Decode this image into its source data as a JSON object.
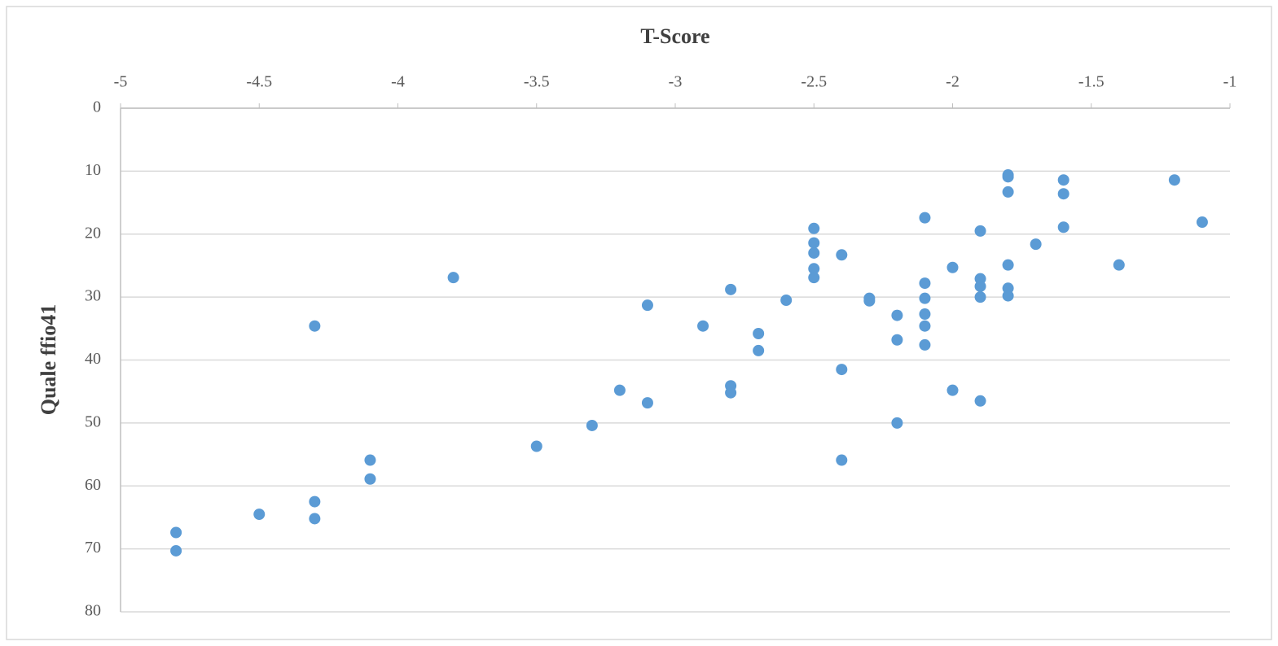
{
  "chart_data": {
    "type": "scatter",
    "x_label": "T-Score",
    "y_label": "Quale ffio41",
    "xlim": [
      -5,
      -1
    ],
    "xticks": [
      -5,
      -4.5,
      -4,
      -3.5,
      -3,
      -2.5,
      -2,
      -1.5,
      -1
    ],
    "ylim": [
      0,
      80
    ],
    "yticks": [
      0,
      10,
      20,
      30,
      40,
      50,
      60,
      70,
      80
    ],
    "y_reversed": true,
    "x_axis_position": "top",
    "grid": true,
    "color": "#5b9bd5",
    "x": [
      -4.8,
      -4.8,
      -4.5,
      -4.3,
      -4.3,
      -4.3,
      -4.1,
      -4.1,
      -3.8,
      -3.5,
      -3.3,
      -3.2,
      -3.1,
      -3.1,
      -2.9,
      -2.8,
      -2.8,
      -2.8,
      -2.7,
      -2.7,
      -2.6,
      -2.5,
      -2.5,
      -2.5,
      -2.5,
      -2.5,
      -2.4,
      -2.4,
      -2.4,
      -2.3,
      -2.3,
      -2.2,
      -2.2,
      -2.2,
      -2.1,
      -2.1,
      -2.1,
      -2.1,
      -2.1,
      -2.1,
      -2.0,
      -2.0,
      -1.9,
      -1.9,
      -1.9,
      -1.9,
      -1.9,
      -1.8,
      -1.8,
      -1.8,
      -1.8,
      -1.8,
      -1.8,
      -1.7,
      -1.6,
      -1.6,
      -1.6,
      -1.4,
      -1.2,
      -1.1
    ],
    "values": [
      67.4,
      70.3,
      64.5,
      34.6,
      62.5,
      65.2,
      55.9,
      58.9,
      26.9,
      53.7,
      50.4,
      44.8,
      31.3,
      46.8,
      34.6,
      28.8,
      44.1,
      45.2,
      35.8,
      38.5,
      30.5,
      19.1,
      21.4,
      23.0,
      25.5,
      26.9,
      23.3,
      41.5,
      55.9,
      30.2,
      30.6,
      32.9,
      36.8,
      50.0,
      17.4,
      27.8,
      30.2,
      32.7,
      34.6,
      37.6,
      25.3,
      44.8,
      19.5,
      27.1,
      28.3,
      30.0,
      46.5,
      10.6,
      10.9,
      13.3,
      24.9,
      28.6,
      29.8,
      21.6,
      11.4,
      13.6,
      18.9,
      24.9,
      11.4,
      18.1
    ]
  }
}
